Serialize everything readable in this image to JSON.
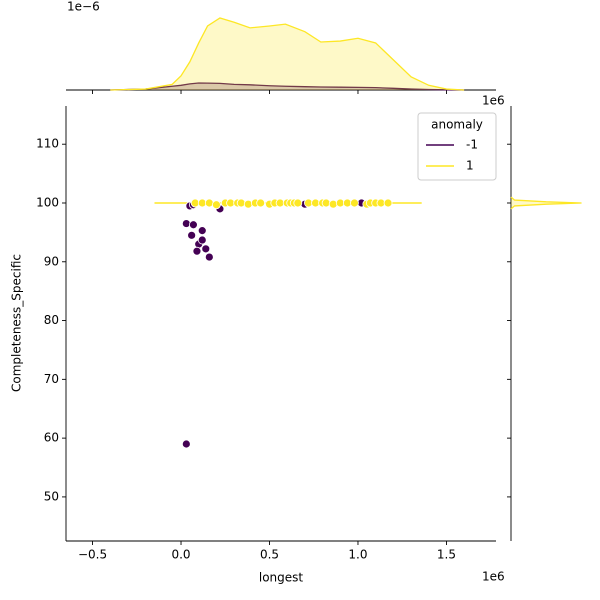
{
  "chart_data": {
    "type": "scatter",
    "xlabel": "longest",
    "ylabel": "Completeness_Specific",
    "x_offset_label": "1e6",
    "xlim": [
      -0.65,
      1.78
    ],
    "ylim": [
      42.5,
      116.5
    ],
    "xticks": [
      {
        "value": -0.5,
        "label": "−0.5"
      },
      {
        "value": 0,
        "label": "0.0"
      },
      {
        "value": 0.5,
        "label": "0.5"
      },
      {
        "value": 1,
        "label": "1.0"
      },
      {
        "value": 1.5,
        "label": "1.5"
      }
    ],
    "yticks": [
      50,
      60,
      70,
      80,
      90,
      100,
      110
    ],
    "legend_title": "anomaly",
    "legend_position": "upper right",
    "series": [
      {
        "name": "-1",
        "color": "#440154",
        "x": [
          0.03,
          0.07,
          0.06,
          0.12,
          0.1,
          0.12,
          0.09,
          0.14,
          0.16,
          0.03,
          0.05,
          0.07,
          0.22,
          0.08,
          0.7,
          1.02
        ],
        "values": [
          96.5,
          96.3,
          94.5,
          95.3,
          93.0,
          93.7,
          91.8,
          92.2,
          90.8,
          59.0,
          99.5,
          99.7,
          99.0,
          100.0,
          99.8,
          100.0
        ]
      },
      {
        "name": "1",
        "color": "#fde725",
        "x": [
          0.08,
          0.12,
          0.16,
          0.2,
          0.25,
          0.28,
          0.32,
          0.34,
          0.38,
          0.42,
          0.45,
          0.5,
          0.53,
          0.56,
          0.6,
          0.62,
          0.64,
          0.66,
          0.72,
          0.76,
          0.8,
          0.82,
          0.86,
          0.9,
          0.94,
          0.98,
          1.05,
          1.07,
          1.1,
          1.13,
          1.17
        ],
        "values": [
          100,
          100,
          100,
          99.7,
          100,
          100,
          100,
          100,
          99.8,
          100,
          100,
          99.8,
          100,
          100,
          100,
          100,
          100,
          100,
          100,
          100,
          100,
          100,
          99.8,
          100,
          100,
          100,
          99.8,
          100,
          100,
          100,
          100
        ]
      }
    ],
    "kde_2d": [
      {
        "color": "#fde725",
        "x": [
          -0.15,
          1.36
        ],
        "values": [
          100,
          100
        ]
      }
    ],
    "marginal_x": {
      "offset_label": "1e−6",
      "ylim": [
        0,
        0.85
      ],
      "x": [
        -0.4,
        -0.2,
        -0.05,
        0.0,
        0.05,
        0.1,
        0.15,
        0.22,
        0.3,
        0.39,
        0.5,
        0.59,
        0.7,
        0.79,
        0.9,
        1.0,
        1.1,
        1.2,
        1.3,
        1.4,
        1.5,
        1.6
      ],
      "series": [
        {
          "color": "#440154",
          "values": [
            0,
            0.01,
            0.04,
            0.05,
            0.065,
            0.074,
            0.073,
            0.07,
            0.06,
            0.055,
            0.045,
            0.04,
            0.035,
            0.032,
            0.03,
            0.028,
            0.025,
            0.018,
            0.01,
            0.005,
            0.002,
            0
          ]
        },
        {
          "color": "#fde725",
          "values": [
            0,
            0.01,
            0.06,
            0.15,
            0.3,
            0.5,
            0.68,
            0.765,
            0.72,
            0.66,
            0.68,
            0.7,
            0.62,
            0.51,
            0.52,
            0.55,
            0.5,
            0.32,
            0.14,
            0.05,
            0.01,
            0
          ]
        }
      ]
    },
    "marginal_y": {
      "xlim": [
        0,
        1.12
      ],
      "y": [
        99.0,
        99.5,
        99.8,
        100.0,
        100.2,
        100.5,
        101.0
      ],
      "series": [
        {
          "color": "#fde725",
          "values": [
            0,
            0.05,
            0.5,
            1.0,
            0.5,
            0.05,
            0
          ]
        }
      ]
    }
  }
}
